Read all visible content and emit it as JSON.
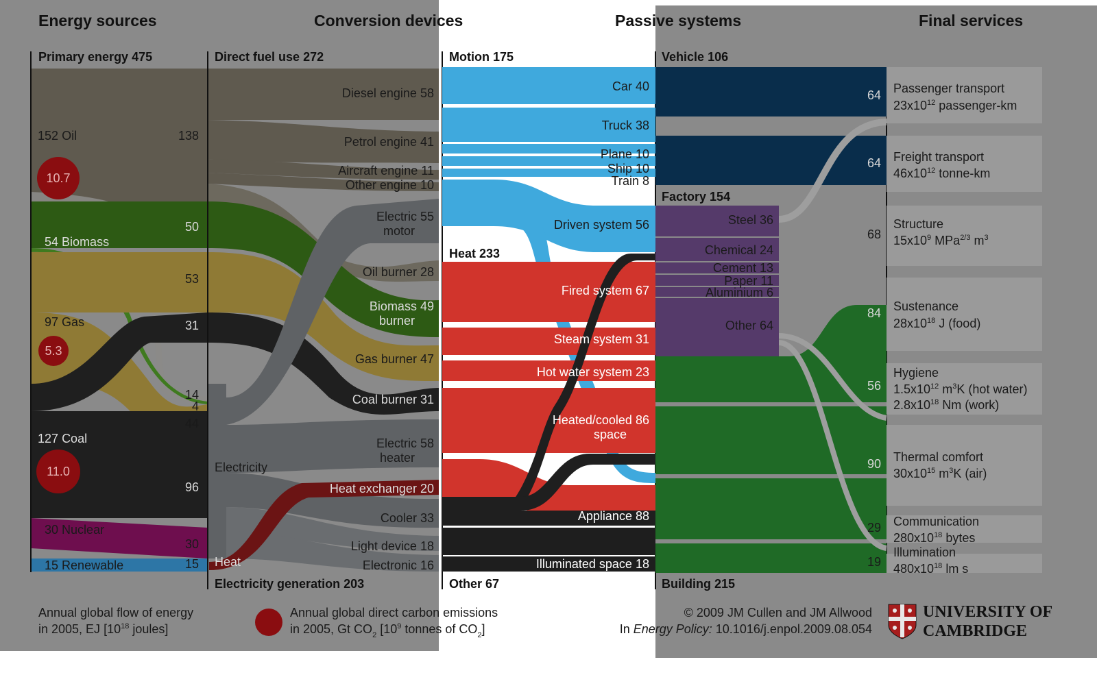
{
  "titles": {
    "energy_sources": "Energy sources",
    "conversion_devices": "Conversion devices",
    "passive_systems": "Passive systems",
    "final_services": "Final services"
  },
  "headers": {
    "primary_energy": "Primary energy",
    "primary_energy_value": "475",
    "direct_fuel_use": "Direct fuel use",
    "direct_fuel_use_value": "272",
    "electricity_generation": "Electricity generation",
    "electricity_generation_value": "203",
    "motion": "Motion",
    "motion_value": "175",
    "heat": "Heat",
    "heat_value": "233",
    "other": "Other",
    "other_value": "67",
    "vehicle": "Vehicle",
    "vehicle_value": "106",
    "factory": "Factory",
    "factory_value": "154",
    "building": "Building",
    "building_value": "215"
  },
  "sources": [
    {
      "name": "Oil",
      "value": "152",
      "emission": "10.7",
      "direct": "138"
    },
    {
      "name": "Biomass",
      "value": "54",
      "direct": "50"
    },
    {
      "name": "Gas",
      "value": "97",
      "emission": "5.3",
      "direct": "53"
    },
    {
      "name": "Coal",
      "value": "127",
      "emission": "11.0",
      "direct": "31"
    },
    {
      "name": "Nuclear",
      "value": "30"
    },
    {
      "name": "Renewable",
      "value": "15"
    }
  ],
  "electricity_inputs": [
    "14",
    "4",
    "44",
    "96",
    "30",
    "15"
  ],
  "electricity_label": "Electricity",
  "heat_label": "Heat",
  "devices": [
    {
      "name": "Diesel engine",
      "value": "58"
    },
    {
      "name": "Petrol engine",
      "value": "41"
    },
    {
      "name": "Aircraft engine",
      "value": "11"
    },
    {
      "name": "Other engine",
      "value": "10"
    },
    {
      "name": "Electric motor",
      "line1": "Electric",
      "line2": "motor",
      "value": "55"
    },
    {
      "name": "Oil burner",
      "value": "28"
    },
    {
      "name": "Biomass burner",
      "line1": "Biomass",
      "line2": "burner",
      "value": "49"
    },
    {
      "name": "Gas burner",
      "value": "47"
    },
    {
      "name": "Coal burner",
      "value": "31"
    },
    {
      "name": "Electric heater",
      "line1": "Electric",
      "line2": "heater",
      "value": "58"
    },
    {
      "name": "Heat exchanger",
      "value": "20"
    },
    {
      "name": "Cooler",
      "value": "33"
    },
    {
      "name": "Light device",
      "value": "18"
    },
    {
      "name": "Electronic",
      "value": "16"
    }
  ],
  "motion_systems": [
    {
      "name": "Car",
      "value": "40"
    },
    {
      "name": "Truck",
      "value": "38"
    },
    {
      "name": "Plane",
      "value": "10"
    },
    {
      "name": "Ship",
      "value": "10"
    },
    {
      "name": "Train",
      "value": "8"
    },
    {
      "name": "Driven system",
      "value": "56"
    }
  ],
  "heat_systems": [
    {
      "name": "Fired system",
      "value": "67"
    },
    {
      "name": "Steam system",
      "value": "31"
    },
    {
      "name": "Hot water system",
      "value": "23"
    },
    {
      "name": "Heated/cooled space",
      "line1": "Heated/cooled",
      "line2": "space",
      "value": "86"
    },
    {
      "name": "Appliance",
      "value": "88"
    }
  ],
  "other_systems": [
    {
      "name": "Illuminated space",
      "value": "18"
    }
  ],
  "factory_items": [
    {
      "name": "Steel",
      "value": "36"
    },
    {
      "name": "Chemical",
      "value": "24"
    },
    {
      "name": "Cement",
      "value": "13"
    },
    {
      "name": "Paper",
      "value": "11"
    },
    {
      "name": "Aluminium",
      "value": "6"
    },
    {
      "name": "Other",
      "value": "64"
    }
  ],
  "services": [
    {
      "value": "64",
      "name": "Passenger transport",
      "unit_pre": "23x10",
      "unit_sup": "12",
      "unit_post": " passenger-km"
    },
    {
      "value": "64",
      "name": "Freight transport",
      "unit_pre": "46x10",
      "unit_sup": "12",
      "unit_post": " tonne-km"
    },
    {
      "value": "68",
      "name": "Structure",
      "unit_pre": "15x10",
      "unit_sup": "9",
      "unit_post": "  MPa",
      "unit_sup2": "2/3",
      "unit_post2": " m",
      "unit_sup3": "3"
    },
    {
      "value": "84",
      "name": "Sustenance",
      "unit_pre": "28x10",
      "unit_sup": "18",
      "unit_post": " J (food)"
    },
    {
      "value": "56",
      "name": "Hygiene",
      "unit_pre": "1.5x10",
      "unit_sup": "12",
      "unit_post": " m",
      "unit_sup2": "3",
      "unit_post2": "K (hot water)",
      "unit2_pre": "2.8x10",
      "unit2_sup": "18",
      "unit2_post": " Nm (work)"
    },
    {
      "value": "90",
      "name": "Thermal comfort",
      "unit_pre": "30x10",
      "unit_sup": "15",
      "unit_post": " m",
      "unit_sup2": "3",
      "unit_post2": "K (air)"
    },
    {
      "value": "29",
      "name": "Communication",
      "unit_pre": "280x10",
      "unit_sup": "18",
      "unit_post": " bytes"
    },
    {
      "value": "19",
      "name": "Illumination",
      "unit_pre": "480x10",
      "unit_sup": "18",
      "unit_post": " lm s"
    }
  ],
  "footer": {
    "annual_flow_line1": "Annual global flow of energy",
    "annual_flow_line2_pre": "in 2005, EJ  [10",
    "annual_flow_line2_sup": "18",
    "annual_flow_line2_post": " joules]",
    "emissions_line1": "Annual global direct carbon emissions",
    "emissions_line2_pre": "in 2005, Gt CO",
    "emissions_line2_sub": "2",
    "emissions_line2_mid": "  [10",
    "emissions_line2_sup": "9",
    "emissions_line2_mid2": " tonnes of CO",
    "emissions_line2_sub2": "2",
    "emissions_line2_post": "]",
    "copyright": "© 2009 JM Cullen and JM Allwood",
    "citation_pre": "In ",
    "citation_journal": "Energy Policy:",
    "citation_doi": " 10.1016/j.enpol.2009.08.054",
    "university_line1": "UNIVERSITY OF",
    "university_line2": "CAMBRIDGE"
  },
  "colors": {
    "oil": "#5f5a4f",
    "biomass": "#2d5a14",
    "gas": "#8f7a35",
    "coal": "#1f1f1f",
    "nuclear": "#6e0e4e",
    "renewable": "#2d76a6",
    "electricity": "#5f6265",
    "heat_flow": "#6b1414",
    "motion": "#3fa9dd",
    "heat": "#d1342c",
    "other": "#1e1e1e",
    "vehicle": "#092d4b",
    "factory": "#553a6a",
    "building": "#1f6a26",
    "service_box": "#9a9a9a",
    "emission_circle": "#8a0d10"
  }
}
